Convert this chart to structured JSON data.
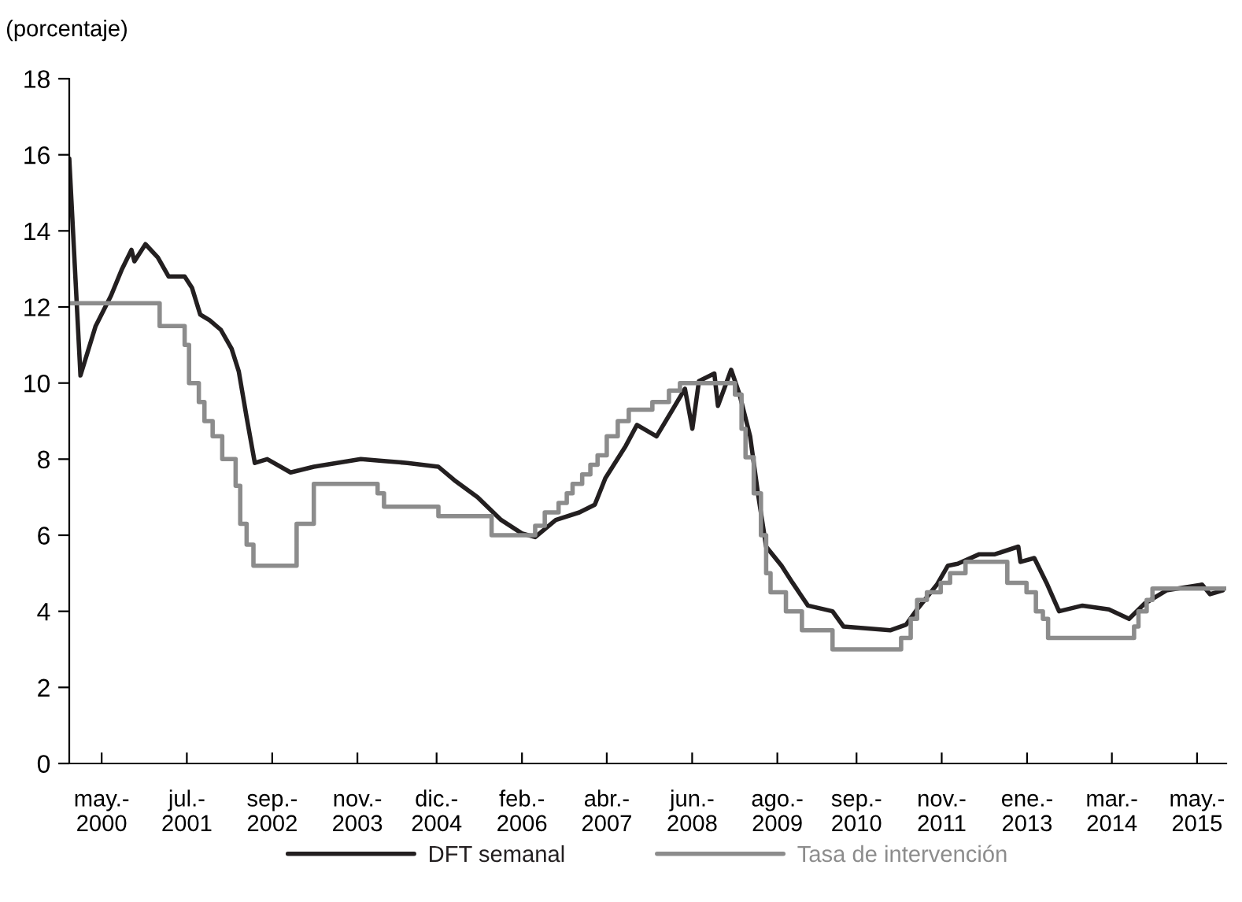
{
  "chart_data": {
    "type": "line",
    "ylabel": "(porcentaje)",
    "xlim": [
      "1999-12-05",
      "2015-10-08"
    ],
    "ylim": [
      0,
      18
    ],
    "yticks": [
      0,
      2,
      4,
      6,
      8,
      10,
      12,
      14,
      16,
      18
    ],
    "xticks": [
      {
        "value": "2000-05-15",
        "label": "may.-\n2000"
      },
      {
        "value": "2001-07-15",
        "label": "jul.-\n2001"
      },
      {
        "value": "2002-09-15",
        "label": "sep.-\n2002"
      },
      {
        "value": "2003-11-15",
        "label": "nov.-\n2003"
      },
      {
        "value": "2004-12-15",
        "label": "dic.-\n2004"
      },
      {
        "value": "2006-02-15",
        "label": "feb.-\n2006"
      },
      {
        "value": "2007-04-15",
        "label": "abr.-\n2007"
      },
      {
        "value": "2008-06-15",
        "label": "jun.-\n2008"
      },
      {
        "value": "2009-08-15",
        "label": "ago.-\n2009"
      },
      {
        "value": "2010-09-15",
        "label": "sep.-\n2010"
      },
      {
        "value": "2011-11-15",
        "label": "nov.-\n2011"
      },
      {
        "value": "2013-01-15",
        "label": "ene.-\n2013"
      },
      {
        "value": "2014-03-15",
        "label": "mar.-\n2014"
      },
      {
        "value": "2015-05-15",
        "label": "may.-\n2015"
      }
    ],
    "grid": false,
    "legend": "bottom",
    "series": [
      {
        "name": "DFT semanal",
        "type": "line",
        "color": "#231f20",
        "x": [
          "1999-12-05",
          "2000-01-30",
          "2000-04-15",
          "2000-07-01",
          "2000-08-25",
          "2000-10-11",
          "2000-10-26",
          "2000-12-20",
          "2001-02-20",
          "2001-04-15",
          "2001-07-04",
          "2001-08-10",
          "2001-09-20",
          "2001-11-06",
          "2002-01-01",
          "2002-02-24",
          "2002-04-01",
          "2002-05-10",
          "2002-06-20",
          "2002-08-21",
          "2002-12-16",
          "2003-04-11",
          "2003-12-02",
          "2004-03-27",
          "2004-07-22",
          "2004-12-24",
          "2005-03-13",
          "2005-07-08",
          "2005-11-03",
          "2006-02-14",
          "2006-04-22",
          "2006-08-03",
          "2006-11-29",
          "2007-02-14",
          "2007-04-08",
          "2007-07-19",
          "2007-09-13",
          "2007-12-20",
          "2008-03-09",
          "2008-05-10",
          "2008-06-16",
          "2008-07-19",
          "2008-10-04",
          "2008-10-22",
          "2008-12-27",
          "2009-02-07",
          "2009-04-01",
          "2009-05-10",
          "2009-06-20",
          "2009-09-05",
          "2009-10-30",
          "2010-01-15",
          "2010-05-18",
          "2010-07-12",
          "2011-03-02",
          "2011-05-21",
          "2011-07-15",
          "2011-10-22",
          "2011-12-16",
          "2012-02-03",
          "2012-05-21",
          "2012-08-07",
          "2012-12-02",
          "2012-12-13",
          "2013-02-20",
          "2013-04-22",
          "2013-06-24",
          "2013-10-19",
          "2014-02-28",
          "2014-06-09",
          "2014-08-25",
          "2014-12-13",
          "2015-06-09",
          "2015-07-19",
          "2015-09-20"
        ],
        "values": [
          15.9,
          10.2,
          11.5,
          12.3,
          13.0,
          13.5,
          13.2,
          13.65,
          13.3,
          12.8,
          12.8,
          12.5,
          11.8,
          11.65,
          11.4,
          10.9,
          10.3,
          9.1,
          7.9,
          8.0,
          7.65,
          7.8,
          8.0,
          7.95,
          7.9,
          7.8,
          7.45,
          7.0,
          6.4,
          6.05,
          5.95,
          6.4,
          6.6,
          6.8,
          7.5,
          8.35,
          8.9,
          8.6,
          9.3,
          9.85,
          8.8,
          10.05,
          10.25,
          9.4,
          10.35,
          9.7,
          8.6,
          7.1,
          5.7,
          5.2,
          4.75,
          4.15,
          4.0,
          3.6,
          3.5,
          3.65,
          4.05,
          4.7,
          5.2,
          5.25,
          5.5,
          5.5,
          5.7,
          5.3,
          5.4,
          4.75,
          4.0,
          4.15,
          4.05,
          3.8,
          4.2,
          4.55,
          4.7,
          4.45,
          4.55
        ]
      },
      {
        "name": "Tasa de intervención",
        "type": "step",
        "color": "#8c8c8c",
        "x": [
          "1999-12-13",
          "2001-03-01",
          "2001-07-04",
          "2001-07-26",
          "2001-09-13",
          "2001-10-11",
          "2001-11-21",
          "2002-01-08",
          "2002-03-16",
          "2002-04-08",
          "2002-05-10",
          "2002-06-13",
          "2003-01-15",
          "2003-04-11",
          "2004-02-24",
          "2004-03-27",
          "2004-12-24",
          "2005-09-16",
          "2006-04-22",
          "2006-06-09",
          "2006-08-17",
          "2006-09-27",
          "2006-10-26",
          "2006-12-13",
          "2007-01-23",
          "2007-02-28",
          "2007-04-15",
          "2007-06-09",
          "2007-08-03",
          "2007-11-29",
          "2008-02-20",
          "2008-04-15",
          "2009-01-15",
          "2009-02-17",
          "2009-03-09",
          "2009-04-19",
          "2009-05-25",
          "2009-06-20",
          "2009-07-12",
          "2009-09-27",
          "2009-12-16",
          "2010-05-18",
          "2011-04-26",
          "2011-06-13",
          "2011-07-15",
          "2011-09-02",
          "2011-11-10",
          "2011-12-27",
          "2012-03-13",
          "2012-10-08",
          "2013-01-12",
          "2013-02-28",
          "2013-04-04",
          "2013-04-30",
          "2014-07-04",
          "2014-07-26",
          "2014-09-05",
          "2014-10-04",
          "2015-10-04"
        ],
        "values": [
          12.1,
          11.5,
          11.0,
          10.0,
          9.5,
          9.0,
          8.6,
          8.0,
          7.3,
          6.3,
          5.75,
          5.2,
          6.3,
          7.35,
          7.1,
          6.75,
          6.5,
          6.0,
          6.25,
          6.6,
          6.85,
          7.1,
          7.35,
          7.6,
          7.85,
          8.1,
          8.6,
          9.0,
          9.3,
          9.5,
          9.8,
          10.0,
          9.7,
          8.8,
          8.05,
          7.1,
          6.0,
          5.0,
          4.5,
          4.0,
          3.5,
          3.0,
          3.3,
          3.8,
          4.3,
          4.5,
          4.75,
          5.0,
          5.3,
          4.75,
          4.5,
          4.0,
          3.8,
          3.3,
          3.6,
          4.0,
          4.3,
          4.6,
          4.6
        ]
      }
    ]
  }
}
